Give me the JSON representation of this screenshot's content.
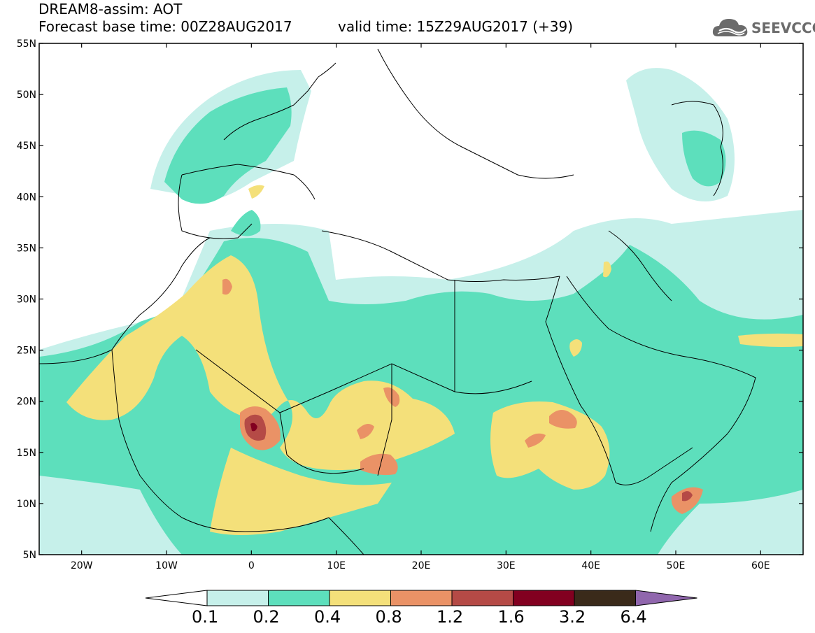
{
  "header": {
    "title": "DREAM8-assim: AOT",
    "base_time": "Forecast base time: 00Z28AUG2017",
    "valid_time": "valid time: 15Z29AUG2017 (+39)"
  },
  "logo": {
    "text": "SEEVCCC",
    "icon": "cloud-icon"
  },
  "map": {
    "lat_labels": [
      "55N",
      "50N",
      "45N",
      "40N",
      "35N",
      "30N",
      "25N",
      "20N",
      "15N",
      "10N",
      "5N"
    ],
    "lon_labels": [
      "20W",
      "10W",
      "0",
      "10E",
      "20E",
      "30E",
      "40E",
      "50E",
      "60E"
    ],
    "lat_range": [
      5,
      55
    ],
    "lon_range": [
      -25,
      65
    ]
  },
  "colorbar": {
    "labels": [
      "0.1",
      "0.2",
      "0.4",
      "0.8",
      "1.2",
      "1.6",
      "3.2",
      "6.4"
    ],
    "colors": [
      "#ffffff",
      "#c6f0ea",
      "#5ddfbc",
      "#f4e07a",
      "#ea9266",
      "#b54a46",
      "#820020",
      "#3a2a1a",
      "#9066ad"
    ]
  }
}
